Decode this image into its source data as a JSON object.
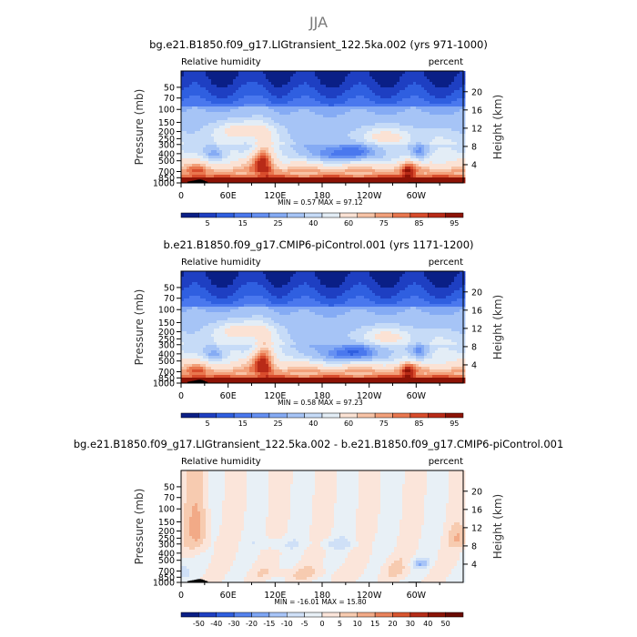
{
  "page_title": "JJA",
  "chart_data": [
    {
      "type": "heatmap",
      "title": "bg.e21.B1850.f09_g17.LIGtransient_122.5ka.002 (yrs 971-1000)",
      "subtitle_left": "Relative humidity",
      "subtitle_right": "percent",
      "ylabel": "Pressure (mb)",
      "ylabel_right": "Height (km)",
      "x_ticks": [
        "0",
        "60E",
        "120E",
        "180",
        "120W",
        "60W"
      ],
      "x_tick_values": [
        0,
        60,
        120,
        180,
        240,
        300
      ],
      "xlim": [
        0,
        360
      ],
      "y_ticks": [
        "50",
        "70",
        "100",
        "150",
        "200",
        "250",
        "300",
        "400",
        "500",
        "700",
        "850",
        "1000"
      ],
      "y_tick_values": [
        50,
        70,
        100,
        150,
        200,
        250,
        300,
        400,
        500,
        700,
        850,
        1000
      ],
      "ylim": [
        30,
        1000
      ],
      "height_ticks": [
        "20",
        "16",
        "12",
        "8",
        "4"
      ],
      "height_tick_values": [
        20,
        16,
        12,
        8,
        4
      ],
      "stats": "MIN =    0.57   MAX =   97.12",
      "min": 0.57,
      "max": 97.12,
      "colorbar_labels": [
        "5",
        "15",
        "25",
        "40",
        "60",
        "75",
        "85",
        "95"
      ],
      "levels": [
        5,
        10,
        15,
        20,
        25,
        30,
        40,
        50,
        60,
        70,
        75,
        80,
        85,
        90,
        95
      ],
      "features": [
        {
          "name": "dry upper troposphere (tropics/subtropics)",
          "lon": 208,
          "pressure": 420,
          "rh": 15
        },
        {
          "name": "dry centre east of 0",
          "lon": 42,
          "pressure": 410,
          "rh": 20
        },
        {
          "name": "moist column",
          "lon": 112,
          "pressure": 500,
          "rh": 75
        }
      ]
    },
    {
      "type": "heatmap",
      "title": "b.e21.B1850.f09_g17.CMIP6-piControl.001 (yrs 1171-1200)",
      "subtitle_left": "Relative humidity",
      "subtitle_right": "percent",
      "ylabel": "Pressure (mb)",
      "ylabel_right": "Height (km)",
      "x_ticks": [
        "0",
        "60E",
        "120E",
        "180",
        "120W",
        "60W"
      ],
      "x_tick_values": [
        0,
        60,
        120,
        180,
        240,
        300
      ],
      "xlim": [
        0,
        360
      ],
      "y_ticks": [
        "50",
        "70",
        "100",
        "150",
        "200",
        "250",
        "300",
        "400",
        "500",
        "700",
        "850",
        "1000"
      ],
      "y_tick_values": [
        50,
        70,
        100,
        150,
        200,
        250,
        300,
        400,
        500,
        700,
        850,
        1000
      ],
      "ylim": [
        30,
        1000
      ],
      "height_ticks": [
        "20",
        "16",
        "12",
        "8",
        "4"
      ],
      "height_tick_values": [
        20,
        16,
        12,
        8,
        4
      ],
      "stats": "MIN =    0.58   MAX =   97.23",
      "min": 0.58,
      "max": 97.23,
      "colorbar_labels": [
        "5",
        "15",
        "25",
        "40",
        "60",
        "75",
        "85",
        "95"
      ],
      "levels": [
        5,
        10,
        15,
        20,
        25,
        30,
        40,
        50,
        60,
        70,
        75,
        80,
        85,
        90,
        95
      ],
      "features": [
        {
          "name": "dry upper troposphere",
          "lon": 215,
          "pressure": 400,
          "rh": 12
        },
        {
          "name": "dry centre east of 0",
          "lon": 42,
          "pressure": 400,
          "rh": 20
        },
        {
          "name": "moist column",
          "lon": 100,
          "pressure": 500,
          "rh": 75
        }
      ]
    },
    {
      "type": "heatmap",
      "title": "bg.e21.B1850.f09_g17.LIGtransient_122.5ka.002 - b.e21.B1850.f09_g17.CMIP6-piControl.001",
      "subtitle_left": "Relative humidity",
      "subtitle_right": "percent",
      "ylabel": "Pressure (mb)",
      "ylabel_right": "Height (km)",
      "x_ticks": [
        "0",
        "60E",
        "120E",
        "180",
        "120W",
        "60W"
      ],
      "x_tick_values": [
        0,
        60,
        120,
        180,
        240,
        300
      ],
      "xlim": [
        0,
        360
      ],
      "y_ticks": [
        "50",
        "70",
        "100",
        "150",
        "200",
        "250",
        "300",
        "400",
        "500",
        "700",
        "850",
        "1000"
      ],
      "y_tick_values": [
        50,
        70,
        100,
        150,
        200,
        250,
        300,
        400,
        500,
        700,
        850,
        1000
      ],
      "ylim": [
        30,
        1000
      ],
      "height_ticks": [
        "20",
        "16",
        "12",
        "8",
        "4"
      ],
      "height_tick_values": [
        20,
        16,
        12,
        8,
        4
      ],
      "stats": "MIN =  -16.01   MAX =   15.80",
      "min": -16.01,
      "max": 15.8,
      "colorbar_labels": [
        "-50",
        "-40",
        "-30",
        "-20",
        "-15",
        "-10",
        "-5",
        "0",
        "5",
        "10",
        "15",
        "20",
        "30",
        "40",
        "50"
      ],
      "levels": [
        -50,
        -40,
        -30,
        -20,
        -15,
        -10,
        -5,
        0,
        5,
        10,
        15,
        20,
        30,
        40,
        50
      ],
      "features": [
        {
          "name": "positive anomaly (upper, near 20E)",
          "lon": 25,
          "pressure": 200,
          "rh": 10
        },
        {
          "name": "negative anomaly (east Pacific)",
          "lon": 305,
          "pressure": 550,
          "rh": -12
        }
      ]
    }
  ]
}
